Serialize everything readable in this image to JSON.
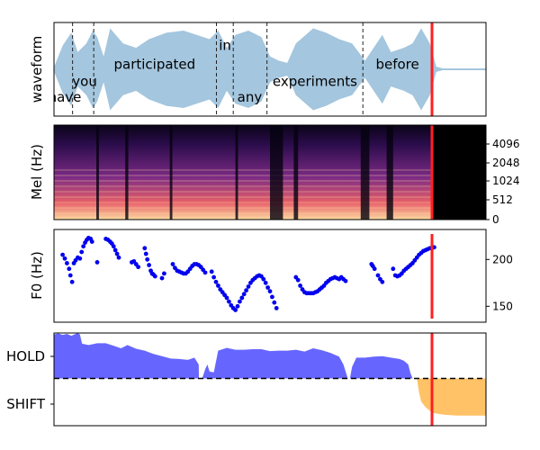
{
  "colors": {
    "waveform": "#a4c6de",
    "marker": "#ff1f1f",
    "f0_points": "#0000ee",
    "hold_fill": "#6666ff",
    "shift_fill": "#ffc266",
    "spectrogram_low": "#05030f",
    "spectrogram_high": "#fcf2b0"
  },
  "chart_data": [
    {
      "type": "line",
      "panel": "waveform",
      "ylabel": "waveform",
      "xlim": [
        0,
        1
      ],
      "ylim": [
        -1,
        1
      ],
      "marker_x": 0.875,
      "word_boundaries": [
        0.043,
        0.092,
        0.376,
        0.415,
        0.493,
        0.715
      ],
      "words": [
        {
          "text": "have",
          "x": 0.025,
          "y": -0.65
        },
        {
          "text": "you",
          "x": 0.071,
          "y": -0.28
        },
        {
          "text": "participated",
          "x": 0.233,
          "y": 0.12
        },
        {
          "text": "in",
          "x": 0.396,
          "y": 0.55
        },
        {
          "text": "any",
          "x": 0.453,
          "y": -0.65
        },
        {
          "text": "experiments",
          "x": 0.604,
          "y": -0.28
        },
        {
          "text": "before",
          "x": 0.795,
          "y": 0.12
        }
      ],
      "envelope": [
        [
          0.0,
          0.05
        ],
        [
          0.02,
          0.55
        ],
        [
          0.04,
          0.85
        ],
        [
          0.055,
          0.4
        ],
        [
          0.075,
          0.6
        ],
        [
          0.09,
          0.9
        ],
        [
          0.1,
          0.75
        ],
        [
          0.115,
          0.3
        ],
        [
          0.13,
          0.95
        ],
        [
          0.16,
          0.6
        ],
        [
          0.19,
          0.5
        ],
        [
          0.22,
          0.7
        ],
        [
          0.26,
          0.85
        ],
        [
          0.3,
          0.9
        ],
        [
          0.33,
          0.8
        ],
        [
          0.36,
          0.7
        ],
        [
          0.38,
          0.9
        ],
        [
          0.4,
          0.5
        ],
        [
          0.42,
          0.8
        ],
        [
          0.45,
          0.9
        ],
        [
          0.48,
          0.75
        ],
        [
          0.5,
          0.3
        ],
        [
          0.52,
          0.2
        ],
        [
          0.54,
          0.15
        ],
        [
          0.56,
          0.6
        ],
        [
          0.6,
          0.95
        ],
        [
          0.63,
          0.85
        ],
        [
          0.66,
          0.7
        ],
        [
          0.69,
          0.6
        ],
        [
          0.72,
          0.2
        ],
        [
          0.74,
          0.5
        ],
        [
          0.76,
          0.8
        ],
        [
          0.78,
          0.4
        ],
        [
          0.81,
          0.5
        ],
        [
          0.83,
          0.6
        ],
        [
          0.85,
          0.95
        ],
        [
          0.87,
          0.6
        ],
        [
          0.885,
          0.06
        ],
        [
          0.9,
          0.02
        ],
        [
          1.0,
          0.02
        ]
      ]
    },
    {
      "type": "heatmap",
      "panel": "mel",
      "ylabel": "Mel (Hz)",
      "yticks": [
        "0",
        "512",
        "1024",
        "2048",
        "4096"
      ],
      "marker_x": 0.875,
      "silence_after_x": 0.875
    },
    {
      "type": "scatter",
      "panel": "f0",
      "ylabel": "F0 (Hz)",
      "yticks": [
        150,
        200
      ],
      "ylim": [
        133,
        232
      ],
      "marker_x": 0.875,
      "points": [
        [
          0.02,
          205
        ],
        [
          0.025,
          201
        ],
        [
          0.03,
          196
        ],
        [
          0.035,
          190
        ],
        [
          0.038,
          183
        ],
        [
          0.042,
          176
        ],
        [
          0.046,
          196
        ],
        [
          0.05,
          199
        ],
        [
          0.055,
          202
        ],
        [
          0.06,
          201
        ],
        [
          0.064,
          208
        ],
        [
          0.068,
          214
        ],
        [
          0.072,
          218
        ],
        [
          0.076,
          221
        ],
        [
          0.08,
          223
        ],
        [
          0.085,
          222
        ],
        [
          0.088,
          219
        ],
        [
          0.1,
          197
        ],
        [
          0.12,
          222
        ],
        [
          0.125,
          221
        ],
        [
          0.13,
          219
        ],
        [
          0.134,
          217
        ],
        [
          0.138,
          214
        ],
        [
          0.142,
          210
        ],
        [
          0.146,
          206
        ],
        [
          0.15,
          202
        ],
        [
          0.18,
          197
        ],
        [
          0.185,
          198
        ],
        [
          0.19,
          195
        ],
        [
          0.195,
          192
        ],
        [
          0.21,
          212
        ],
        [
          0.213,
          206
        ],
        [
          0.216,
          200
        ],
        [
          0.22,
          194
        ],
        [
          0.224,
          188
        ],
        [
          0.227,
          185
        ],
        [
          0.23,
          184
        ],
        [
          0.234,
          182
        ],
        [
          0.25,
          180
        ],
        [
          0.255,
          185
        ],
        [
          0.275,
          195
        ],
        [
          0.28,
          191
        ],
        [
          0.285,
          188
        ],
        [
          0.29,
          187
        ],
        [
          0.295,
          186
        ],
        [
          0.3,
          185
        ],
        [
          0.305,
          185
        ],
        [
          0.31,
          187
        ],
        [
          0.315,
          190
        ],
        [
          0.32,
          193
        ],
        [
          0.325,
          195
        ],
        [
          0.33,
          195
        ],
        [
          0.335,
          194
        ],
        [
          0.34,
          192
        ],
        [
          0.345,
          189
        ],
        [
          0.35,
          186
        ],
        [
          0.365,
          187
        ],
        [
          0.37,
          181
        ],
        [
          0.375,
          176
        ],
        [
          0.38,
          172
        ],
        [
          0.385,
          168
        ],
        [
          0.39,
          165
        ],
        [
          0.395,
          162
        ],
        [
          0.4,
          159
        ],
        [
          0.405,
          155
        ],
        [
          0.41,
          151
        ],
        [
          0.415,
          148
        ],
        [
          0.42,
          146
        ],
        [
          0.425,
          150
        ],
        [
          0.43,
          155
        ],
        [
          0.435,
          159
        ],
        [
          0.44,
          163
        ],
        [
          0.445,
          167
        ],
        [
          0.45,
          171
        ],
        [
          0.455,
          175
        ],
        [
          0.46,
          178
        ],
        [
          0.465,
          180
        ],
        [
          0.47,
          182
        ],
        [
          0.475,
          183
        ],
        [
          0.48,
          182
        ],
        [
          0.485,
          179
        ],
        [
          0.49,
          175
        ],
        [
          0.495,
          170
        ],
        [
          0.5,
          166
        ],
        [
          0.505,
          160
        ],
        [
          0.51,
          154
        ],
        [
          0.515,
          148
        ],
        [
          0.56,
          181
        ],
        [
          0.565,
          178
        ],
        [
          0.57,
          172
        ],
        [
          0.575,
          168
        ],
        [
          0.58,
          165
        ],
        [
          0.585,
          164
        ],
        [
          0.59,
          164
        ],
        [
          0.595,
          164
        ],
        [
          0.6,
          164
        ],
        [
          0.605,
          165
        ],
        [
          0.61,
          166
        ],
        [
          0.615,
          168
        ],
        [
          0.62,
          170
        ],
        [
          0.625,
          172
        ],
        [
          0.63,
          175
        ],
        [
          0.635,
          177
        ],
        [
          0.64,
          179
        ],
        [
          0.645,
          180
        ],
        [
          0.65,
          181
        ],
        [
          0.655,
          180
        ],
        [
          0.66,
          179
        ],
        [
          0.665,
          181
        ],
        [
          0.67,
          179
        ],
        [
          0.675,
          177
        ],
        [
          0.735,
          195
        ],
        [
          0.738,
          193
        ],
        [
          0.742,
          190
        ],
        [
          0.75,
          183
        ],
        [
          0.755,
          179
        ],
        [
          0.76,
          176
        ],
        [
          0.785,
          190
        ],
        [
          0.79,
          183
        ],
        [
          0.795,
          182
        ],
        [
          0.8,
          183
        ],
        [
          0.805,
          185
        ],
        [
          0.81,
          188
        ],
        [
          0.815,
          190
        ],
        [
          0.82,
          192
        ],
        [
          0.825,
          194
        ],
        [
          0.83,
          196
        ],
        [
          0.835,
          199
        ],
        [
          0.84,
          202
        ],
        [
          0.845,
          205
        ],
        [
          0.85,
          207
        ],
        [
          0.855,
          209
        ],
        [
          0.86,
          210
        ],
        [
          0.865,
          211
        ],
        [
          0.87,
          212
        ],
        [
          0.875,
          212
        ],
        [
          0.88,
          213
        ]
      ]
    },
    {
      "type": "area",
      "panel": "turn-taking",
      "yticks": [
        "HOLD",
        "SHIFT"
      ],
      "ylim": [
        -1,
        1
      ],
      "threshold": 0,
      "marker_x": 0.875,
      "hold_series": [
        [
          0.0,
          0.95
        ],
        [
          0.01,
          0.97
        ],
        [
          0.02,
          0.94
        ],
        [
          0.03,
          0.96
        ],
        [
          0.04,
          0.92
        ],
        [
          0.05,
          0.96
        ],
        [
          0.055,
          0.98
        ],
        [
          0.06,
          0.95
        ],
        [
          0.065,
          0.75
        ],
        [
          0.08,
          0.72
        ],
        [
          0.1,
          0.76
        ],
        [
          0.12,
          0.76
        ],
        [
          0.14,
          0.7
        ],
        [
          0.155,
          0.65
        ],
        [
          0.17,
          0.72
        ],
        [
          0.19,
          0.64
        ],
        [
          0.21,
          0.6
        ],
        [
          0.23,
          0.53
        ],
        [
          0.25,
          0.48
        ],
        [
          0.27,
          0.43
        ],
        [
          0.29,
          0.42
        ],
        [
          0.31,
          0.4
        ],
        [
          0.325,
          0.45
        ],
        [
          0.335,
          0.3
        ],
        [
          0.3355,
          0.0
        ],
        [
          0.34,
          0.0
        ],
        [
          0.343,
          0.0
        ],
        [
          0.35,
          0.2
        ],
        [
          0.355,
          0.3
        ],
        [
          0.36,
          0.15
        ],
        [
          0.37,
          0.13
        ],
        [
          0.38,
          0.6
        ],
        [
          0.4,
          0.66
        ],
        [
          0.42,
          0.62
        ],
        [
          0.44,
          0.62
        ],
        [
          0.46,
          0.63
        ],
        [
          0.48,
          0.63
        ],
        [
          0.5,
          0.59
        ],
        [
          0.52,
          0.6
        ],
        [
          0.54,
          0.6
        ],
        [
          0.56,
          0.62
        ],
        [
          0.58,
          0.58
        ],
        [
          0.6,
          0.65
        ],
        [
          0.62,
          0.61
        ],
        [
          0.64,
          0.55
        ],
        [
          0.66,
          0.47
        ],
        [
          0.67,
          0.3
        ],
        [
          0.675,
          0.15
        ],
        [
          0.68,
          0.0
        ],
        [
          0.685,
          0.0
        ],
        [
          0.69,
          0.25
        ],
        [
          0.7,
          0.45
        ],
        [
          0.72,
          0.45
        ],
        [
          0.74,
          0.47
        ],
        [
          0.76,
          0.48
        ],
        [
          0.78,
          0.45
        ],
        [
          0.8,
          0.42
        ],
        [
          0.81,
          0.38
        ],
        [
          0.82,
          0.3
        ],
        [
          0.825,
          0.12
        ],
        [
          0.83,
          0.0
        ]
      ],
      "shift_series": [
        [
          0.84,
          0.0
        ],
        [
          0.845,
          -0.3
        ],
        [
          0.85,
          -0.5
        ],
        [
          0.86,
          -0.62
        ],
        [
          0.87,
          -0.7
        ],
        [
          0.88,
          -0.75
        ],
        [
          0.9,
          -0.78
        ],
        [
          0.93,
          -0.8
        ],
        [
          0.95,
          -0.8
        ],
        [
          0.97,
          -0.8
        ],
        [
          1.0,
          -0.8
        ]
      ]
    }
  ]
}
